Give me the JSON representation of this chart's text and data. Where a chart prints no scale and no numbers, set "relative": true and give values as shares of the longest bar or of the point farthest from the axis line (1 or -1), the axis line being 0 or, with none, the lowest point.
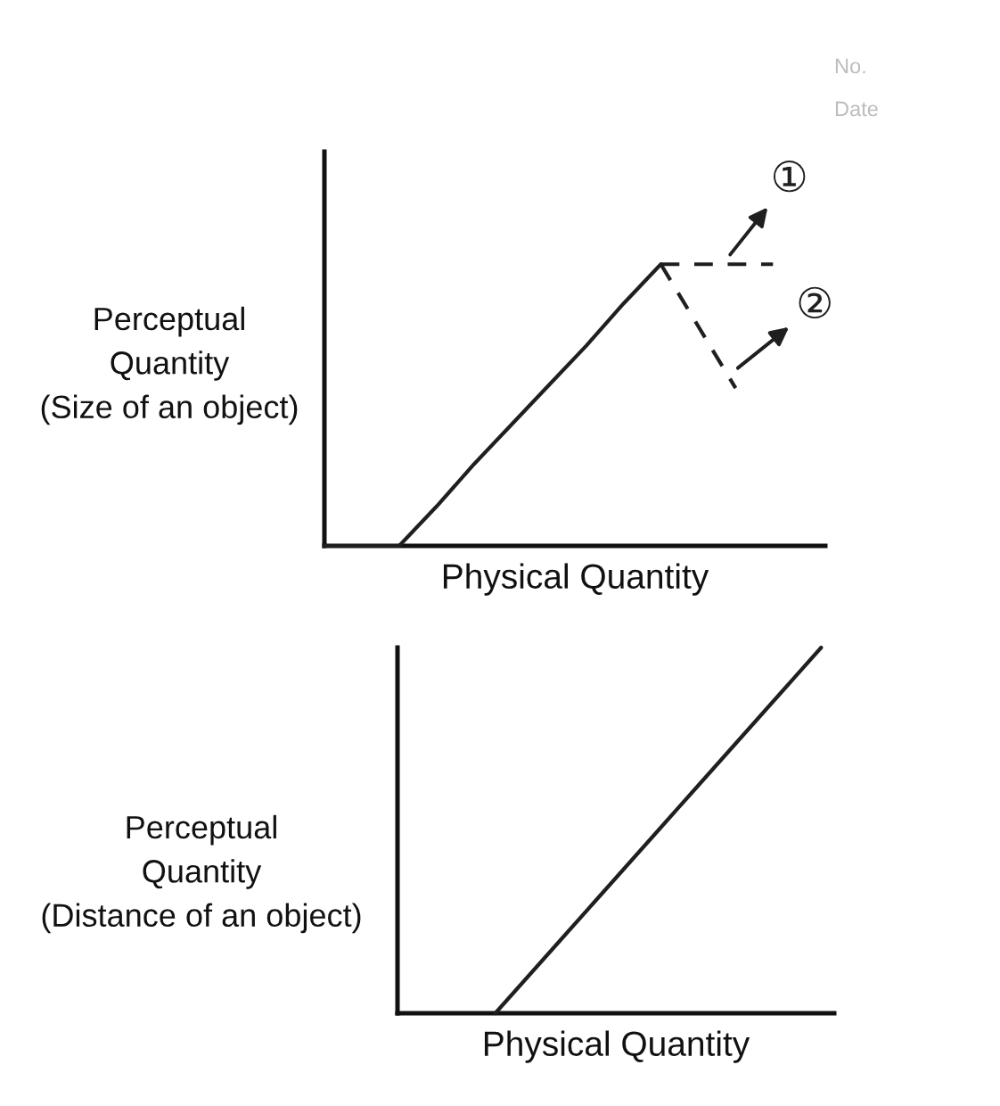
{
  "chart_data": [
    {
      "type": "line",
      "relative": true,
      "tick_labels": false,
      "ylabel": "Perceptual\nQuantity\n(Size of an object)",
      "xlabel": "Physical Quantity",
      "categories": [
        null,
        null,
        null,
        null,
        null,
        null,
        null,
        null,
        null,
        null,
        null,
        null,
        null,
        null
      ],
      "series": [
        {
          "color": "#1f1f1f",
          "line_style": "solid",
          "values": [
            0,
            0,
            0,
            0.14,
            0.29,
            0.43,
            0.57,
            0.71,
            0.86,
            1,
            null,
            null,
            null,
            null
          ]
        },
        {
          "name": "①",
          "color": "#1f1f1f",
          "line_style": "dashed",
          "values": [
            null,
            null,
            null,
            null,
            null,
            null,
            null,
            null,
            null,
            1,
            1,
            1,
            1,
            null
          ]
        },
        {
          "name": "②",
          "color": "#1f1f1f",
          "line_style": "dashed",
          "values": [
            null,
            null,
            null,
            null,
            null,
            null,
            null,
            null,
            null,
            1,
            0.78,
            0.56,
            null,
            null
          ]
        }
      ],
      "annotations": [
        "No.",
        "Date"
      ]
    },
    {
      "type": "line",
      "relative": true,
      "tick_labels": false,
      "ylabel": "Perceptual\nQuantity\n(Distance of an object)",
      "xlabel": "Physical Quantity",
      "categories": [
        null,
        null,
        null,
        null,
        null,
        null,
        null,
        null,
        null,
        null,
        null,
        null,
        null,
        null
      ],
      "series": [
        {
          "color": "#1f1f1f",
          "line_style": "solid",
          "values": [
            null,
            null,
            null,
            0,
            0.1,
            0.2,
            0.3,
            0.4,
            0.5,
            0.6,
            0.7,
            0.8,
            0.9,
            1
          ]
        }
      ]
    }
  ]
}
